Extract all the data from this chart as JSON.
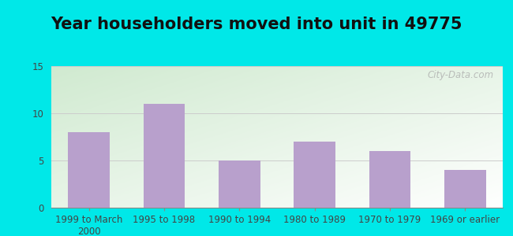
{
  "title": "Year householders moved into unit in 49775",
  "categories": [
    "1999 to March\n2000",
    "1995 to 1998",
    "1990 to 1994",
    "1980 to 1989",
    "1970 to 1979",
    "1969 or earlier"
  ],
  "values": [
    8,
    11,
    5,
    7,
    6,
    4
  ],
  "bar_color": "#b8a0cc",
  "ylim": [
    0,
    15
  ],
  "yticks": [
    0,
    5,
    10,
    15
  ],
  "background_outer": "#00e8e8",
  "gradient_top_left": "#d8eed8",
  "gradient_top_right": "#e8f5e8",
  "gradient_bottom": "#ffffff",
  "watermark": "City-Data.com",
  "title_fontsize": 15,
  "tick_fontsize": 8.5
}
